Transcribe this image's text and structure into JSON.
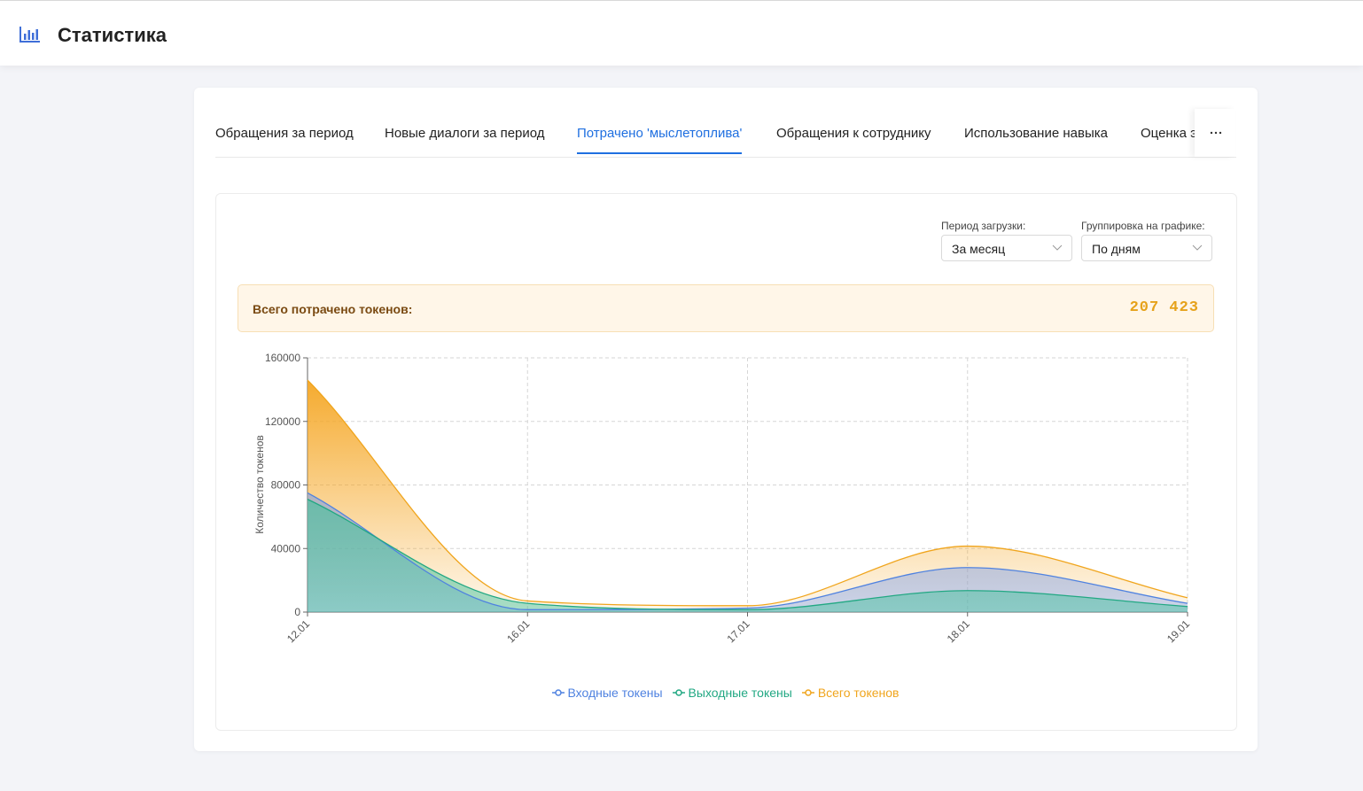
{
  "header": {
    "title": "Статистика"
  },
  "tabs": [
    "Обращения за период",
    "Новые диалоги за период",
    "Потрачено 'мыслетоплива'",
    "Обращения к сотруднику",
    "Использование навыка",
    "Оценка э"
  ],
  "active_tab": 2,
  "filters": [
    {
      "label": "Период загрузки:",
      "value": "За месяц"
    },
    {
      "label": "Группировка на графике:",
      "value": "По дням"
    }
  ],
  "summary": {
    "label": "Всего потрачено токенов:",
    "value": "207 423"
  },
  "chart_data": {
    "type": "area",
    "y_label": "Количество токенов",
    "categories": [
      "12.01",
      "16.01",
      "17.01",
      "18.01",
      "19.01"
    ],
    "series": [
      {
        "name": "Всего токенов",
        "color": "#f0a51d",
        "values": [
          146000,
          7000,
          4000,
          41500,
          9000
        ]
      },
      {
        "name": "Входные токены",
        "color": "#4f82e0",
        "values": [
          75000,
          1500,
          2500,
          28000,
          5500
        ]
      },
      {
        "name": "Выходные токены",
        "color": "#22a883",
        "values": [
          71000,
          5500,
          1500,
          13500,
          3500
        ]
      }
    ],
    "legend_order": [
      1,
      2,
      0
    ],
    "ylim": [
      0,
      160000
    ],
    "yticks": [
      0,
      40000,
      80000,
      120000,
      160000
    ],
    "grid": true
  }
}
